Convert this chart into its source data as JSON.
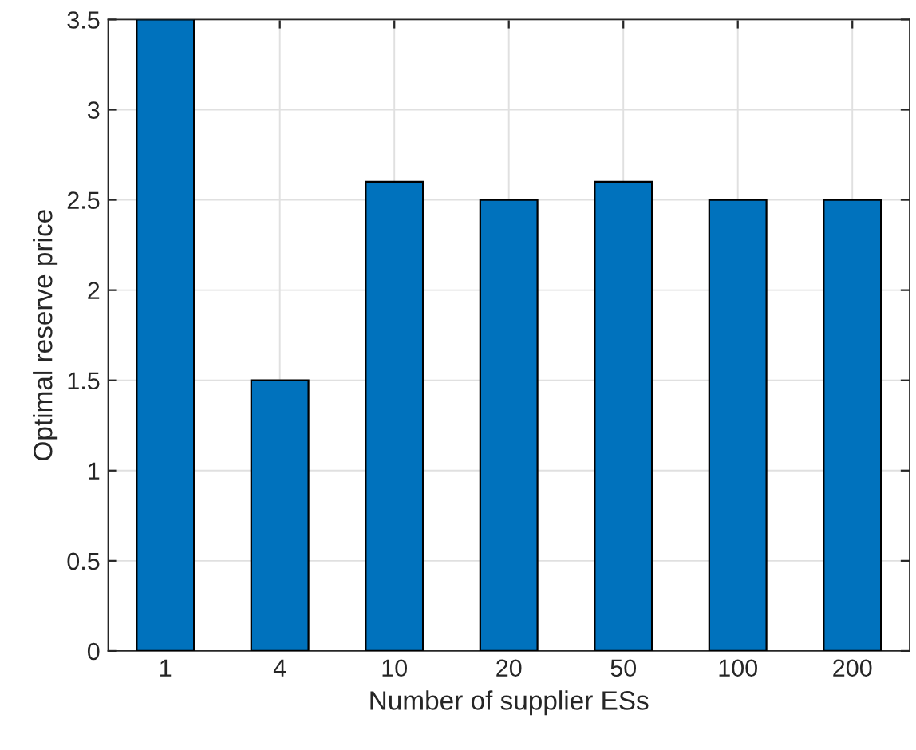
{
  "chart_data": {
    "type": "bar",
    "xlabel": "Number of supplier ESs",
    "ylabel": "Optimal reserve price",
    "categories": [
      "1",
      "4",
      "10",
      "20",
      "50",
      "100",
      "200"
    ],
    "values": [
      3.5,
      1.5,
      2.6,
      2.5,
      2.6,
      2.5,
      2.5
    ],
    "color": "#0072bd",
    "ylim": [
      0,
      3.5
    ],
    "yticks": [
      0,
      0.5,
      1,
      1.5,
      2,
      2.5,
      3,
      3.5
    ],
    "grid": true
  }
}
